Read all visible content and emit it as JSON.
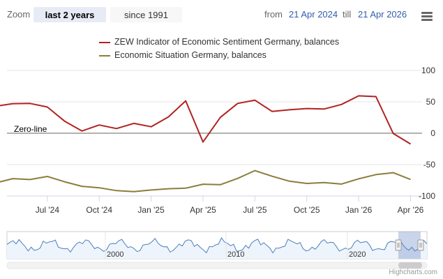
{
  "toolbar": {
    "zoom_label": "Zoom",
    "range_buttons": [
      "last 2 years",
      "since 1991"
    ],
    "from_label": "from",
    "from_value": "21 Apr 2024",
    "till_label": "till",
    "till_value": "21 Apr 2026"
  },
  "chart_data": {
    "type": "line",
    "x": [
      "2024-04",
      "2024-05",
      "2024-06",
      "2024-07",
      "2024-08",
      "2024-09",
      "2024-10",
      "2024-11",
      "2024-12",
      "2025-01",
      "2025-02",
      "2025-03",
      "2025-04",
      "2025-05",
      "2025-06",
      "2025-07",
      "2025-08",
      "2025-09",
      "2025-10",
      "2025-11",
      "2025-12",
      "2026-01",
      "2026-02",
      "2026-03",
      "2026-04"
    ],
    "series": [
      {
        "name": "ZEW Indicator of Economic Sentiment Germany, balances",
        "color": "#b22222",
        "values": [
          42.9,
          47.1,
          47.5,
          41.8,
          19.2,
          3.6,
          13.1,
          7.4,
          15.7,
          10.3,
          26.0,
          51.6,
          -14.0,
          25.2,
          47.5,
          52.7,
          34.7,
          37.3,
          39.3,
          38.5,
          45.8,
          59.6,
          58.3,
          -0.5,
          -17.2
        ]
      },
      {
        "name": "Economic Situation Germany, balances",
        "color": "#8b7d3a",
        "values": [
          -79.2,
          -72.3,
          -73.8,
          -68.9,
          -77.3,
          -84.5,
          -86.9,
          -91.4,
          -93.1,
          -90.4,
          -88.5,
          -87.6,
          -81.2,
          -82.0,
          -72.0,
          -59.5,
          -68.6,
          -76.4,
          -80.0,
          -78.7,
          -81.0,
          -72.7,
          -65.9,
          -62.9,
          -73.7
        ]
      }
    ],
    "yticks": [
      100,
      50,
      0,
      -50,
      -100
    ],
    "ylim": [
      -100,
      100
    ],
    "xticks": [
      "Jul '24",
      "Oct '24",
      "Jan '25",
      "Apr '25",
      "Jul '25",
      "Oct '25",
      "Jan '26",
      "Apr '26"
    ],
    "plotline_label": "Zero-line",
    "navigator": {
      "labels": [
        "2000",
        "2010",
        "2020"
      ]
    }
  },
  "credits": "Highcharts.com"
}
